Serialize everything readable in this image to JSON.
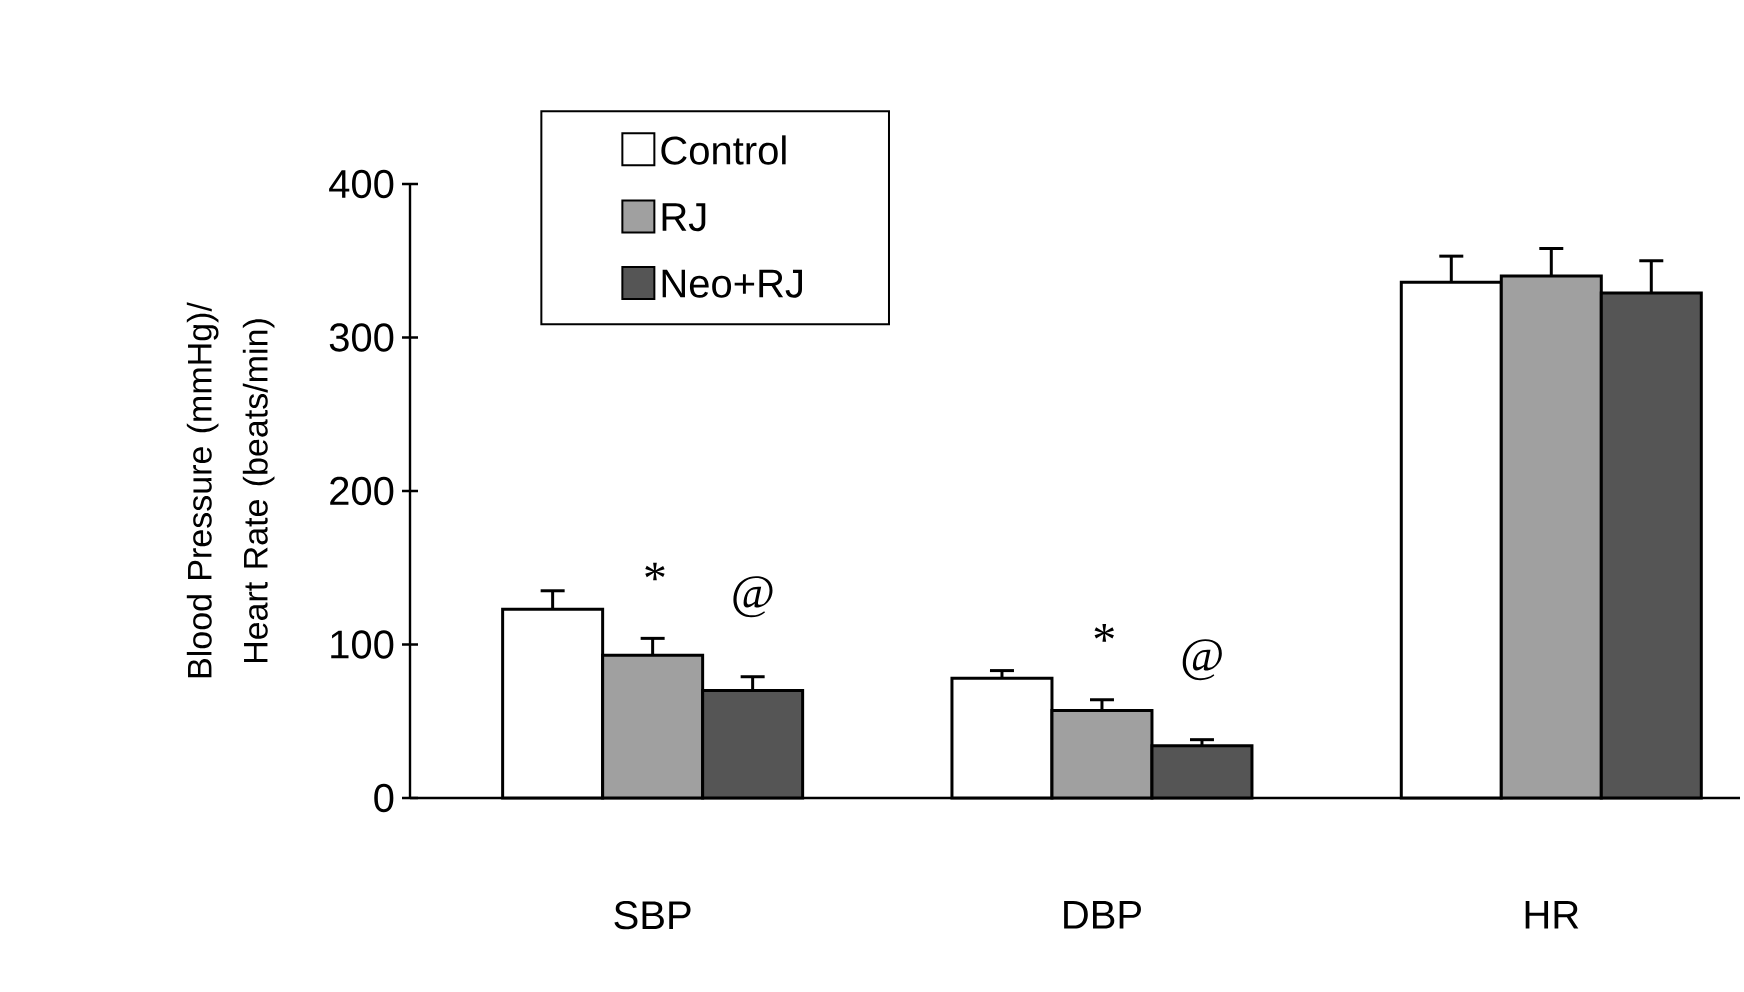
{
  "chart_data": {
    "type": "bar",
    "ylabel": "Blood Pressure (mmHg)/ Heart Rate (beats/min)",
    "categories": [
      "SBP",
      "DBP",
      "HR"
    ],
    "series": [
      {
        "name": "Control",
        "color": "#ffffff",
        "values": [
          123,
          78,
          336
        ],
        "errors": [
          12,
          5,
          17
        ]
      },
      {
        "name": "RJ",
        "color": "#a0a0a0",
        "values": [
          93,
          57,
          340
        ],
        "errors": [
          11,
          7,
          18
        ]
      },
      {
        "name": "Neo+RJ",
        "color": "#555555",
        "values": [
          70,
          34,
          329
        ],
        "errors": [
          9,
          4,
          21
        ]
      }
    ],
    "ylim": [
      0,
      400
    ],
    "yticks": [
      0,
      100,
      200,
      300,
      400
    ],
    "grid": false,
    "legend": "top left",
    "annotations": [
      "*",
      "@",
      "*",
      "@"
    ]
  }
}
